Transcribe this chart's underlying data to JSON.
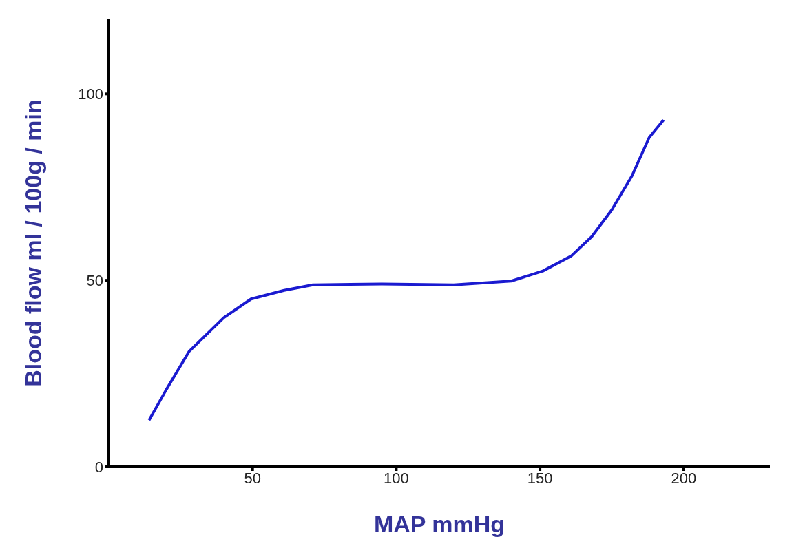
{
  "chart_data": {
    "type": "line",
    "xlabel": "MAP  mmHg",
    "ylabel": "Blood flow  ml / 100g / min",
    "x": [
      14,
      20,
      28,
      40,
      49.5,
      61,
      71,
      95,
      120,
      140,
      151,
      161,
      168,
      175,
      182,
      188,
      193
    ],
    "series": [
      {
        "color": "#1a1ad0",
        "values": [
          12.5,
          20.7,
          31,
          40,
          45,
          47.3,
          48.8,
          49,
          48.8,
          49.8,
          52.5,
          56.6,
          61.7,
          68.9,
          78,
          88.3,
          93
        ]
      }
    ],
    "xlim": [
      0,
      230
    ],
    "xticks": [
      50,
      100,
      150,
      200
    ],
    "ylim": [
      0,
      120
    ],
    "yticks": [
      0,
      50,
      100
    ],
    "grid": false,
    "legend": false,
    "marker": "none",
    "line_style": "solid"
  }
}
